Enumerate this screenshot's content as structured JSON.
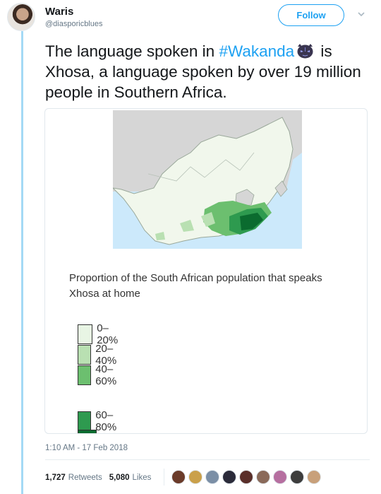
{
  "tweet": {
    "author_name": "Waris",
    "author_handle": "@diasporicblues",
    "follow_label": "Follow",
    "text_before": "The language spoken in ",
    "hashtag": "#Wakanda",
    "text_after_emoji": " is Xhosa, a language spoken by over 19 million people in Southern Africa.",
    "timestamp": "1:10 AM - 17 Feb 2018"
  },
  "media": {
    "caption": "Proportion of the South African population that speaks Xhosa at home",
    "legend": [
      {
        "label": "0–20%",
        "color": "#e8f5e4"
      },
      {
        "label": "20–40%",
        "color": "#b9e0b2"
      },
      {
        "label": "40–60%",
        "color": "#6cbf6f"
      },
      {
        "label": "60–80%",
        "color": "#2e9a4f"
      },
      {
        "label": "",
        "color": "#0b6b2f"
      }
    ]
  },
  "stats": {
    "retweets_count": "1,727",
    "retweets_label": "Retweets",
    "likes_count": "5,080",
    "likes_label": "Likes"
  },
  "likers": [
    {
      "color": "#6b3b2a",
      "name": "liker-avatar"
    },
    {
      "color": "#caa04a",
      "name": "liker-avatar"
    },
    {
      "color": "#7b8fa6",
      "name": "liker-avatar"
    },
    {
      "color": "#2b2b3a",
      "name": "liker-avatar"
    },
    {
      "color": "#5a2f2a",
      "name": "liker-avatar"
    },
    {
      "color": "#8a6a5a",
      "name": "liker-avatar"
    },
    {
      "color": "#b66fa0",
      "name": "liker-avatar"
    },
    {
      "color": "#3d3d3d",
      "name": "liker-avatar"
    },
    {
      "color": "#c8a07a",
      "name": "liker-avatar"
    }
  ],
  "colors": {
    "accent": "#1da1f2",
    "thread_line": "#a4d9f5"
  },
  "icons": {
    "caret": "chevron-down-icon",
    "emoji": "black-panther-emoji-icon"
  }
}
